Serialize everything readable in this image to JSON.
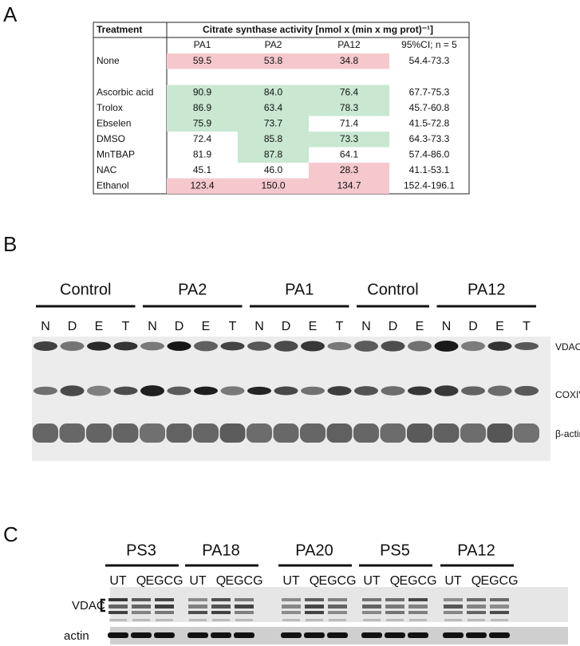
{
  "panel_labels": [
    "A",
    "B",
    "C"
  ],
  "table": {
    "header": [
      "Treatment",
      "Citrate synthase activity [nmol x (min x mg prot)⁻¹]"
    ],
    "subheader": [
      "PA1",
      "PA2",
      "PA12",
      "95%CI; n = 5"
    ],
    "rows": [
      {
        "treatment": "None",
        "values": [
          "59.5",
          "53.8",
          "34.8"
        ],
        "ci": "54.4-73.3",
        "highlight": [
          "#f5c8cd",
          "#f5c8cd",
          "#f5c8cd"
        ]
      },
      {
        "treatment": "Ascorbic acid",
        "values": [
          "90.9",
          "84.0",
          "76.4"
        ],
        "ci": "67.7-75.3",
        "highlight": [
          "#c9e7d1",
          "#c9e7d1",
          "#c9e7d1"
        ]
      },
      {
        "treatment": "Trolox",
        "values": [
          "86.9",
          "63.4",
          "78.3"
        ],
        "ci": "45.7-60.8",
        "highlight": [
          "#c9e7d1",
          "#c9e7d1",
          "#c9e7d1"
        ]
      },
      {
        "treatment": "Ebselen",
        "values": [
          "75.9",
          "73.7",
          "71.4"
        ],
        "ci": "41.5-72.8",
        "highlight": [
          "#c9e7d1",
          "#c9e7d1",
          null
        ]
      },
      {
        "treatment": "DMSO",
        "values": [
          "72.4",
          "85.8",
          "73.3"
        ],
        "ci": "64.3-73.3",
        "highlight": [
          null,
          "#c9e7d1",
          "#c9e7d1"
        ]
      },
      {
        "treatment": "MnTBAP",
        "values": [
          "81.9",
          "87.8",
          "64.1"
        ],
        "ci": "57.4-86.0",
        "highlight": [
          null,
          "#c9e7d1",
          null
        ]
      },
      {
        "treatment": "NAC",
        "values": [
          "45.1",
          "46.0",
          "28.3"
        ],
        "ci": "41.1-53.1",
        "highlight": [
          null,
          null,
          "#f5c8cd"
        ]
      },
      {
        "treatment": "Ethanol",
        "values": [
          "123.4",
          "150.0",
          "134.7"
        ],
        "ci": "152.4-196.1",
        "highlight": [
          "#f5c8cd",
          "#f5c8cd",
          "#f5c8cd"
        ]
      }
    ]
  },
  "blot_b": {
    "groups": [
      {
        "label": "Control",
        "lanes": [
          "N",
          "D",
          "E",
          "T"
        ]
      },
      {
        "label": "PA2",
        "lanes": [
          "N",
          "D",
          "E",
          "T"
        ]
      },
      {
        "label": "PA1",
        "lanes": [
          "N",
          "D",
          "E",
          "T"
        ]
      },
      {
        "label": "Control",
        "lanes": [
          "N",
          "D",
          "E"
        ]
      },
      {
        "label": "PA12",
        "lanes": [
          "N",
          "D",
          "E",
          "T"
        ]
      }
    ],
    "markers": [
      "VDAC",
      "COXIV",
      "β-actin"
    ]
  },
  "blot_c": {
    "groups": [
      {
        "label": "PS3",
        "lanes": [
          "UT",
          "Q",
          "EGCG"
        ]
      },
      {
        "label": "PA18",
        "lanes": [
          "UT",
          "Q",
          "EGCG"
        ]
      },
      {
        "label": "PA20",
        "lanes": [
          "UT",
          "Q",
          "EGCG"
        ]
      },
      {
        "label": "PS5",
        "lanes": [
          "UT",
          "Q",
          "EGCG"
        ]
      },
      {
        "label": "PA12",
        "lanes": [
          "UT",
          "Q",
          "EGCG"
        ]
      }
    ],
    "markers": [
      "VDAC",
      "actin"
    ]
  }
}
